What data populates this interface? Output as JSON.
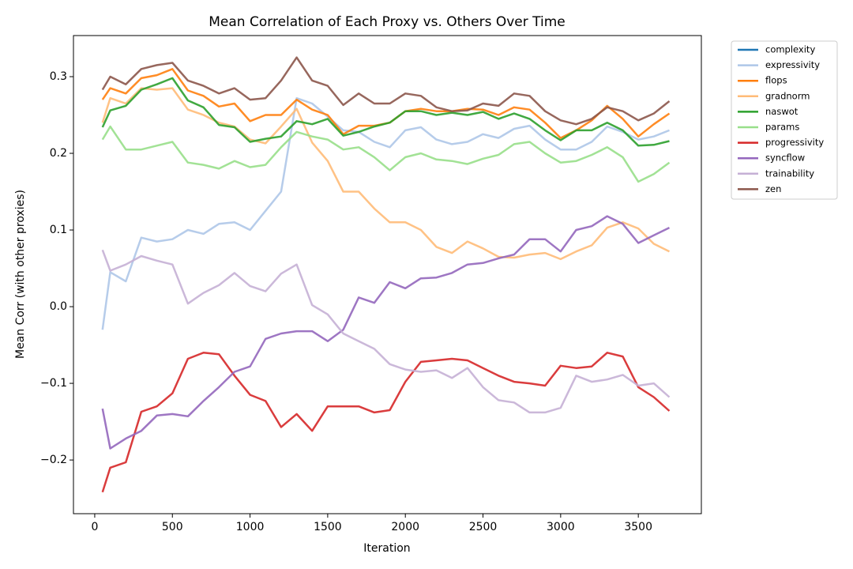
{
  "chart_data": {
    "type": "line",
    "title": "Mean Correlation of Each Proxy vs. Others Over Time",
    "xlabel": "Iteration",
    "ylabel": "Mean Corr (with other proxies)",
    "xlim": [
      -137,
      3906
    ],
    "ylim": [
      -0.27,
      0.3536
    ],
    "xticks": [
      0,
      500,
      1000,
      1500,
      2000,
      2500,
      3000,
      3500
    ],
    "yticks": [
      {
        "value": -0.2,
        "label": "−0.2"
      },
      {
        "value": -0.1,
        "label": "−0.1"
      },
      {
        "value": 0.0,
        "label": "0.0"
      },
      0.1,
      0.2,
      0.3
    ],
    "legend": "upper right outside",
    "x": [
      50,
      100,
      200,
      300,
      400,
      500,
      600,
      700,
      800,
      900,
      1000,
      1100,
      1200,
      1300,
      1400,
      1500,
      1600,
      1700,
      1800,
      1900,
      2000,
      2100,
      2200,
      2300,
      2400,
      2500,
      2600,
      2700,
      2800,
      2900,
      3000,
      3100,
      3200,
      3300,
      3400,
      3500,
      3600,
      3700
    ],
    "series": [
      {
        "name": "complexity",
        "color": "#1f77b4",
        "values": [
          null,
          null,
          null,
          null,
          null,
          null,
          null,
          null,
          null,
          null,
          null,
          null,
          null,
          null,
          null,
          null,
          null,
          null,
          null,
          null,
          null,
          null,
          null,
          null,
          null,
          null,
          null,
          null,
          null,
          null,
          null,
          null,
          null,
          null,
          null,
          null,
          null,
          null
        ]
      },
      {
        "name": "expressivity",
        "color": "#aec7e8",
        "values": [
          -0.03,
          0.045,
          0.033,
          0.09,
          0.085,
          0.088,
          0.1,
          0.095,
          0.108,
          0.11,
          0.1,
          0.125,
          0.15,
          0.272,
          0.265,
          0.248,
          0.23,
          0.228,
          0.215,
          0.208,
          0.23,
          0.234,
          0.218,
          0.212,
          0.215,
          0.225,
          0.22,
          0.232,
          0.236,
          0.218,
          0.205,
          0.205,
          0.215,
          0.235,
          0.228,
          0.218,
          0.222,
          0.23
        ]
      },
      {
        "name": "flops",
        "color": "#ff7f0e",
        "values": [
          0.27,
          0.285,
          0.278,
          0.298,
          0.302,
          0.31,
          0.282,
          0.275,
          0.261,
          0.265,
          0.242,
          0.25,
          0.25,
          0.27,
          0.257,
          0.25,
          0.225,
          0.236,
          0.236,
          0.24,
          0.255,
          0.258,
          0.255,
          0.255,
          0.258,
          0.257,
          0.25,
          0.26,
          0.257,
          0.24,
          0.22,
          0.23,
          0.243,
          0.262,
          0.245,
          0.222,
          0.238,
          0.252
        ]
      },
      {
        "name": "gradnorm",
        "color": "#ffbb78",
        "values": [
          0.24,
          0.272,
          0.265,
          0.285,
          0.283,
          0.285,
          0.257,
          0.25,
          0.24,
          0.235,
          0.218,
          0.213,
          0.235,
          0.258,
          0.214,
          0.19,
          0.15,
          0.15,
          0.128,
          0.11,
          0.11,
          0.1,
          0.078,
          0.07,
          0.085,
          0.076,
          0.065,
          0.064,
          0.068,
          0.07,
          0.062,
          0.072,
          0.08,
          0.103,
          0.11,
          0.102,
          0.082,
          0.072
        ]
      },
      {
        "name": "naswot",
        "color": "#2ca02c",
        "values": [
          0.234,
          0.256,
          0.262,
          0.283,
          0.29,
          0.298,
          0.269,
          0.26,
          0.237,
          0.234,
          0.215,
          0.219,
          0.222,
          0.242,
          0.238,
          0.245,
          0.223,
          0.228,
          0.235,
          0.24,
          0.255,
          0.255,
          0.25,
          0.253,
          0.25,
          0.254,
          0.245,
          0.252,
          0.245,
          0.23,
          0.217,
          0.23,
          0.23,
          0.24,
          0.23,
          0.21,
          0.211,
          0.216
        ]
      },
      {
        "name": "params",
        "color": "#98df8a",
        "values": [
          0.218,
          0.235,
          0.205,
          0.205,
          0.21,
          0.215,
          0.188,
          0.185,
          0.18,
          0.19,
          0.182,
          0.185,
          0.208,
          0.228,
          0.222,
          0.218,
          0.205,
          0.208,
          0.195,
          0.178,
          0.195,
          0.2,
          0.192,
          0.19,
          0.186,
          0.193,
          0.198,
          0.212,
          0.215,
          0.2,
          0.188,
          0.19,
          0.198,
          0.208,
          0.195,
          0.163,
          0.173,
          0.188
        ]
      },
      {
        "name": "progressivity",
        "color": "#d62728",
        "values": [
          -0.242,
          -0.21,
          -0.203,
          -0.137,
          -0.13,
          -0.113,
          -0.068,
          -0.06,
          -0.062,
          -0.09,
          -0.115,
          -0.123,
          -0.157,
          -0.14,
          -0.162,
          -0.13,
          -0.13,
          -0.13,
          -0.138,
          -0.135,
          -0.098,
          -0.072,
          -0.07,
          -0.068,
          -0.07,
          -0.08,
          -0.09,
          -0.098,
          -0.1,
          -0.103,
          -0.077,
          -0.08,
          -0.078,
          -0.06,
          -0.065,
          -0.105,
          -0.118,
          -0.136
        ]
      },
      {
        "name": "syncflow",
        "color": "#9467bd",
        "values": [
          -0.133,
          -0.185,
          -0.172,
          -0.162,
          -0.142,
          -0.14,
          -0.143,
          -0.123,
          -0.105,
          -0.085,
          -0.078,
          -0.042,
          -0.035,
          -0.032,
          -0.032,
          -0.045,
          -0.03,
          0.012,
          0.005,
          0.032,
          0.024,
          0.037,
          0.038,
          0.044,
          0.055,
          0.057,
          0.063,
          0.068,
          0.088,
          0.088,
          0.072,
          0.1,
          0.105,
          0.118,
          0.108,
          0.083,
          0.093,
          0.103
        ]
      },
      {
        "name": "trainability",
        "color": "#c5b0d5",
        "values": [
          0.074,
          0.047,
          0.055,
          0.066,
          0.06,
          0.055,
          0.004,
          0.018,
          0.028,
          0.044,
          0.027,
          0.02,
          0.043,
          0.055,
          0.002,
          -0.01,
          -0.035,
          -0.045,
          -0.055,
          -0.075,
          -0.082,
          -0.085,
          -0.083,
          -0.093,
          -0.08,
          -0.105,
          -0.122,
          -0.125,
          -0.138,
          -0.138,
          -0.132,
          -0.09,
          -0.098,
          -0.095,
          -0.089,
          -0.103,
          -0.1,
          -0.118
        ]
      },
      {
        "name": "zen",
        "color": "#8c564b",
        "values": [
          0.283,
          0.3,
          0.29,
          0.31,
          0.315,
          0.318,
          0.295,
          0.288,
          0.278,
          0.285,
          0.27,
          0.272,
          0.295,
          0.325,
          0.295,
          0.288,
          0.263,
          0.278,
          0.265,
          0.265,
          0.278,
          0.275,
          0.26,
          0.255,
          0.256,
          0.265,
          0.262,
          0.278,
          0.275,
          0.255,
          0.243,
          0.238,
          0.245,
          0.26,
          0.255,
          0.243,
          0.252,
          0.268
        ]
      }
    ]
  }
}
